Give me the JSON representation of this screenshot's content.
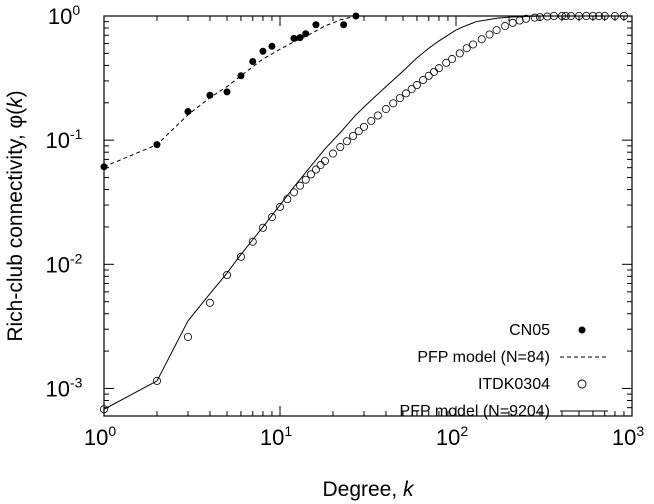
{
  "chart_data": {
    "type": "scatter",
    "xscale": "log",
    "yscale": "log",
    "xlabel": "Degree, ",
    "xlabel_italic": "k",
    "ylabel": "Rich-club connectivity, φ(",
    "ylabel_italic": "k",
    "ylabel_close": ")",
    "xlim": [
      1,
      1000
    ],
    "ylim": [
      0.0006,
      1
    ],
    "xticks": [
      {
        "value": 1,
        "base": "10",
        "exp": "0"
      },
      {
        "value": 10,
        "base": "10",
        "exp": "1"
      },
      {
        "value": 100,
        "base": "10",
        "exp": "2"
      },
      {
        "value": 1000,
        "base": "10",
        "exp": "3"
      }
    ],
    "yticks": [
      {
        "value": 0.001,
        "base": "10",
        "exp": "-3"
      },
      {
        "value": 0.01,
        "base": "10",
        "exp": "-2"
      },
      {
        "value": 0.1,
        "base": "10",
        "exp": "-1"
      },
      {
        "value": 1,
        "base": "10",
        "exp": "0"
      }
    ],
    "legend_position": "bottom-right",
    "series": [
      {
        "name": "CN05",
        "style": "filled-circle",
        "x": [
          1,
          2,
          3,
          4,
          5,
          6,
          7,
          8,
          9,
          12,
          13,
          14,
          16,
          23,
          27
        ],
        "y": [
          0.061,
          0.092,
          0.17,
          0.23,
          0.245,
          0.33,
          0.43,
          0.52,
          0.57,
          0.66,
          0.67,
          0.72,
          0.85,
          0.85,
          1.0
        ]
      },
      {
        "name": "PFP model (N=84)",
        "style": "dashed-line",
        "x": [
          1,
          2,
          3,
          4,
          5,
          6,
          7,
          8,
          10,
          12,
          15,
          18,
          22,
          27
        ],
        "y": [
          0.061,
          0.092,
          0.16,
          0.22,
          0.27,
          0.33,
          0.39,
          0.45,
          0.54,
          0.62,
          0.72,
          0.83,
          0.93,
          1.0
        ]
      },
      {
        "name": "ITDK0304",
        "style": "open-circle",
        "x": [
          1,
          2,
          3,
          4,
          5,
          6,
          7,
          8,
          9,
          10,
          11,
          12,
          13,
          14,
          15,
          16,
          17,
          18,
          20,
          22,
          24,
          26,
          28,
          30,
          33,
          36,
          40,
          44,
          48,
          52,
          56,
          60,
          65,
          70,
          75,
          80,
          88,
          95,
          105,
          115,
          125,
          140,
          155,
          170,
          190,
          210,
          230,
          250,
          280,
          300,
          330,
          360,
          400,
          420,
          450,
          500,
          550,
          600,
          650,
          700,
          800,
          900
        ],
        "y": [
          0.00068,
          0.00115,
          0.0026,
          0.0049,
          0.0082,
          0.0115,
          0.0152,
          0.0197,
          0.024,
          0.029,
          0.0335,
          0.038,
          0.043,
          0.048,
          0.053,
          0.058,
          0.063,
          0.068,
          0.078,
          0.088,
          0.098,
          0.108,
          0.118,
          0.128,
          0.143,
          0.158,
          0.178,
          0.198,
          0.218,
          0.238,
          0.258,
          0.278,
          0.305,
          0.33,
          0.355,
          0.38,
          0.42,
          0.45,
          0.5,
          0.55,
          0.59,
          0.65,
          0.71,
          0.77,
          0.83,
          0.88,
          0.92,
          0.95,
          0.97,
          0.98,
          0.99,
          1.0,
          1.0,
          1.0,
          1.0,
          1.0,
          1.0,
          1.0,
          1.0,
          1.0,
          1.0,
          1.0
        ]
      },
      {
        "name": "PFP model (N=9204)",
        "style": "solid-line",
        "x": [
          1,
          2,
          3,
          4,
          5,
          6,
          8,
          10,
          12,
          15,
          18,
          22,
          27,
          33,
          40,
          50,
          60,
          70,
          80,
          90,
          100,
          110,
          120,
          130,
          150,
          170,
          200,
          250,
          300,
          400,
          500,
          700,
          900
        ],
        "y": [
          0.00068,
          0.00115,
          0.0035,
          0.0058,
          0.0085,
          0.012,
          0.02,
          0.03,
          0.042,
          0.062,
          0.085,
          0.115,
          0.16,
          0.21,
          0.27,
          0.36,
          0.46,
          0.55,
          0.63,
          0.7,
          0.77,
          0.82,
          0.86,
          0.9,
          0.93,
          0.96,
          0.98,
          0.99,
          1.0,
          1.0,
          1.0,
          1.0,
          1.0
        ]
      }
    ]
  }
}
